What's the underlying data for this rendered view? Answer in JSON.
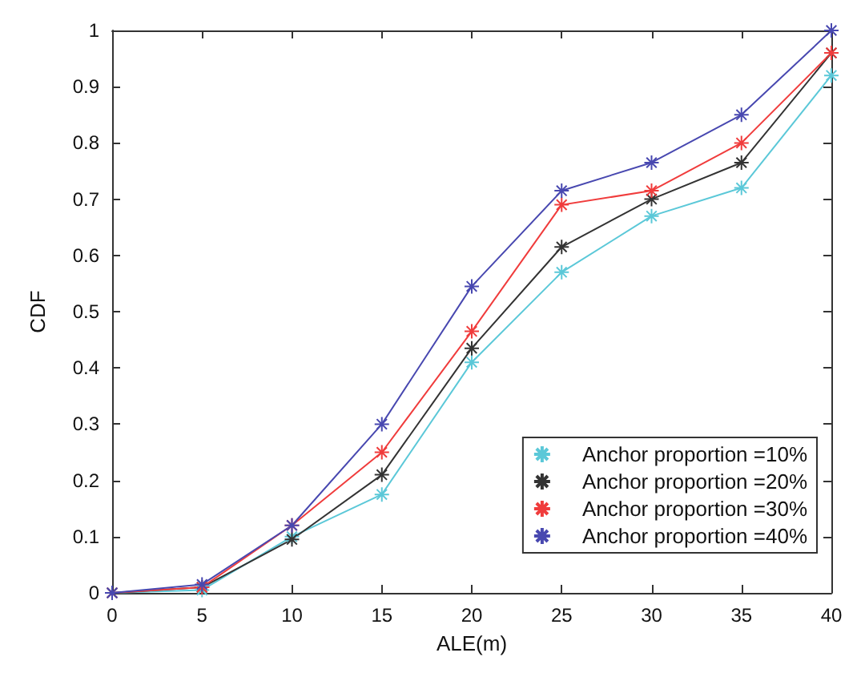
{
  "chart_data": {
    "type": "line",
    "xlabel": "ALE(m)",
    "ylabel": "CDF",
    "x": [
      0,
      5,
      10,
      15,
      20,
      25,
      30,
      35,
      40
    ],
    "xlim": [
      0,
      40
    ],
    "xticks": [
      0,
      5,
      10,
      15,
      20,
      25,
      30,
      35,
      40
    ],
    "ylim": [
      0,
      1
    ],
    "yticks": [
      0,
      0.1,
      0.2,
      0.3,
      0.4,
      0.5,
      0.6,
      0.7,
      0.8,
      0.9,
      1
    ],
    "grid": false,
    "legend": "bottom right",
    "marker": "cross",
    "line_style": "solid",
    "series": [
      {
        "name": "Anchor proportion =10%",
        "color": "#5bc8d8",
        "values": [
          0,
          0.005,
          0.1,
          0.175,
          0.41,
          0.57,
          0.67,
          0.72,
          0.92
        ]
      },
      {
        "name": "Anchor proportion =20%",
        "color": "#333333",
        "values": [
          0,
          0.01,
          0.095,
          0.21,
          0.435,
          0.615,
          0.7,
          0.765,
          0.96
        ]
      },
      {
        "name": "Anchor proportion =30%",
        "color": "#f03c3c",
        "values": [
          0,
          0.01,
          0.12,
          0.25,
          0.465,
          0.69,
          0.715,
          0.8,
          0.96
        ]
      },
      {
        "name": "Anchor proportion =40%",
        "color": "#4848b0",
        "values": [
          0,
          0.015,
          0.12,
          0.3,
          0.545,
          0.715,
          0.765,
          0.85,
          1
        ]
      }
    ]
  }
}
